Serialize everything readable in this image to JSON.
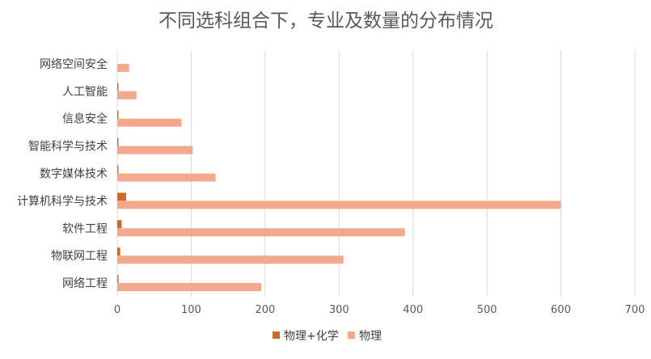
{
  "chart_data": {
    "type": "bar",
    "orientation": "horizontal",
    "title": "不同选科组合下，专业及数量的分布情况",
    "xlabel": "",
    "ylabel": "",
    "categories": [
      "网络空间安全",
      "人工智能",
      "信息安全",
      "智能科学与技术",
      "数字媒体技术",
      "计算机科学与技术",
      "软件工程",
      "物联网工程",
      "网络工程"
    ],
    "series": [
      {
        "name": "物理+化学",
        "color": "#D2691E",
        "values": [
          0,
          1,
          1,
          1,
          1,
          12,
          6,
          4,
          1
        ]
      },
      {
        "name": "物理",
        "color": "#F4A98C",
        "values": [
          16,
          26,
          87,
          102,
          133,
          600,
          389,
          306,
          195
        ]
      }
    ],
    "xlim": [
      0,
      700
    ],
    "xticks": [
      0,
      100,
      200,
      300,
      400,
      500,
      600,
      700
    ],
    "grid": true,
    "legend_position": "bottom"
  }
}
